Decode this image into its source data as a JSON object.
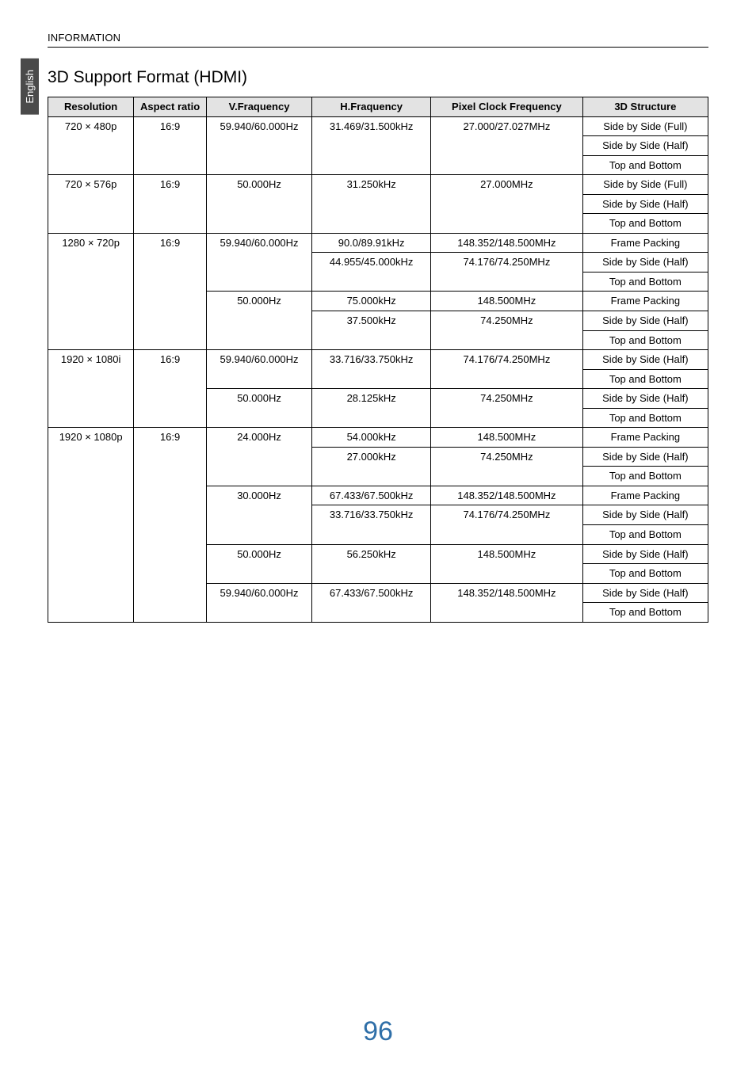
{
  "page": {
    "side_tab": "English",
    "section_header": "INFORMATION",
    "title": "3D Support Format (HDMI)",
    "page_number": "96"
  },
  "table": {
    "headers": {
      "resolution": "Resolution",
      "aspect": "Aspect ratio",
      "vfreq": "V.Fraquency",
      "hfreq": "H.Fraquency",
      "pclk": "Pixel Clock Frequency",
      "structure": "3D Structure"
    },
    "colors": {
      "header_bg": "#e3e3e3",
      "border": "#000000",
      "text": "#000000",
      "page_num": "#2f6fa8",
      "tab_bg": "#4a4a4a",
      "tab_text": "#ffffff"
    },
    "col_widths_pct": [
      13,
      11,
      16,
      18,
      23,
      19
    ],
    "font_size_pt": 10,
    "groups": [
      {
        "resolution": "720 × 480p",
        "aspect": "16:9",
        "vgroups": [
          {
            "vfreq": "59.940/60.000Hz",
            "hgroups": [
              {
                "hfreq": "31.469/31.500kHz",
                "pclk": "27.000/27.027MHz",
                "structures": [
                  "Side by Side (Full)",
                  "Side by Side (Half)",
                  "Top and Bottom"
                ]
              }
            ]
          }
        ]
      },
      {
        "resolution": "720 × 576p",
        "aspect": "16:9",
        "vgroups": [
          {
            "vfreq": "50.000Hz",
            "hgroups": [
              {
                "hfreq": "31.250kHz",
                "pclk": "27.000MHz",
                "structures": [
                  "Side by Side (Full)",
                  "Side by Side (Half)",
                  "Top and Bottom"
                ]
              }
            ]
          }
        ]
      },
      {
        "resolution": "1280 × 720p",
        "aspect": "16:9",
        "vgroups": [
          {
            "vfreq": "59.940/60.000Hz",
            "hgroups": [
              {
                "hfreq": "90.0/89.91kHz",
                "pclk": "148.352/148.500MHz",
                "structures": [
                  "Frame Packing"
                ]
              },
              {
                "hfreq": "44.955/45.000kHz",
                "pclk": "74.176/74.250MHz",
                "structures": [
                  "Side by Side (Half)",
                  "Top and Bottom"
                ]
              }
            ]
          },
          {
            "vfreq": "50.000Hz",
            "hgroups": [
              {
                "hfreq": "75.000kHz",
                "pclk": "148.500MHz",
                "structures": [
                  "Frame Packing"
                ]
              },
              {
                "hfreq": "37.500kHz",
                "pclk": "74.250MHz",
                "structures": [
                  "Side by Side (Half)",
                  "Top and Bottom"
                ]
              }
            ]
          }
        ]
      },
      {
        "resolution": "1920 × 1080i",
        "aspect": "16:9",
        "vgroups": [
          {
            "vfreq": "59.940/60.000Hz",
            "hgroups": [
              {
                "hfreq": "33.716/33.750kHz",
                "pclk": "74.176/74.250MHz",
                "structures": [
                  "Side by Side (Half)",
                  "Top and Bottom"
                ]
              }
            ]
          },
          {
            "vfreq": "50.000Hz",
            "hgroups": [
              {
                "hfreq": "28.125kHz",
                "pclk": "74.250MHz",
                "structures": [
                  "Side by Side (Half)",
                  "Top and Bottom"
                ]
              }
            ]
          }
        ]
      },
      {
        "resolution": "1920 × 1080p",
        "aspect": "16:9",
        "vgroups": [
          {
            "vfreq": "24.000Hz",
            "hgroups": [
              {
                "hfreq": "54.000kHz",
                "pclk": "148.500MHz",
                "structures": [
                  "Frame Packing"
                ]
              },
              {
                "hfreq": "27.000kHz",
                "pclk": "74.250MHz",
                "structures": [
                  "Side by Side (Half)",
                  "Top and Bottom"
                ]
              }
            ]
          },
          {
            "vfreq": "30.000Hz",
            "hgroups": [
              {
                "hfreq": "67.433/67.500kHz",
                "pclk": "148.352/148.500MHz",
                "structures": [
                  "Frame Packing"
                ]
              },
              {
                "hfreq": "33.716/33.750kHz",
                "pclk": "74.176/74.250MHz",
                "structures": [
                  "Side by Side (Half)",
                  "Top and Bottom"
                ]
              }
            ]
          },
          {
            "vfreq": "50.000Hz",
            "hgroups": [
              {
                "hfreq": "56.250kHz",
                "pclk": "148.500MHz",
                "structures": [
                  "Side by Side (Half)",
                  "Top and Bottom"
                ]
              }
            ]
          },
          {
            "vfreq": "59.940/60.000Hz",
            "hgroups": [
              {
                "hfreq": "67.433/67.500kHz",
                "pclk": "148.352/148.500MHz",
                "structures": [
                  "Side by Side (Half)",
                  "Top and Bottom"
                ]
              }
            ]
          }
        ]
      }
    ]
  }
}
